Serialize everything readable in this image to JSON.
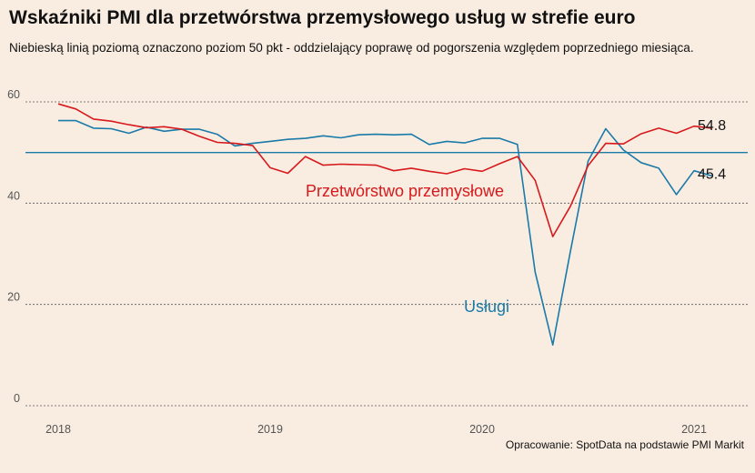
{
  "title": "Wskaźniki PMI dla przetwórstwa przemysłowego usług w strefie euro",
  "subtitle": "Niebieską linią poziomą oznaczono poziom 50 pkt - oddzielający poprawę od pogorszenia względem poprzedniego miesiąca.",
  "source": "Opracowanie: SpotData na podstawie PMI Markit",
  "colors": {
    "background": "#f9ede2",
    "manufacturing": "#d7191c",
    "services": "#1a7aa8",
    "reference_line": "#1a7aa8",
    "grid": "#555555"
  },
  "chart_data": {
    "type": "line",
    "title": "Wskaźniki PMI dla przetwórstwa przemysłowego usług w strefie euro",
    "xlabel": "",
    "ylabel": "",
    "ylim": [
      0,
      62
    ],
    "yticks": [
      0,
      20,
      40,
      60
    ],
    "xticks": [
      "2018",
      "2019",
      "2020",
      "2021"
    ],
    "grid": "horizontal dotted",
    "reference_line": 50,
    "x": [
      "2018-01",
      "2018-02",
      "2018-03",
      "2018-04",
      "2018-05",
      "2018-06",
      "2018-07",
      "2018-08",
      "2018-09",
      "2018-10",
      "2018-11",
      "2018-12",
      "2019-01",
      "2019-02",
      "2019-03",
      "2019-04",
      "2019-05",
      "2019-06",
      "2019-07",
      "2019-08",
      "2019-09",
      "2019-10",
      "2019-11",
      "2019-12",
      "2020-01",
      "2020-02",
      "2020-03",
      "2020-04",
      "2020-05",
      "2020-06",
      "2020-07",
      "2020-08",
      "2020-09",
      "2020-10",
      "2020-11",
      "2020-12",
      "2021-01",
      "2021-02"
    ],
    "series": [
      {
        "name": "Przetwórstwo przemysłowe",
        "end_label": "54.8",
        "values": [
          59.6,
          58.6,
          56.6,
          56.2,
          55.5,
          54.9,
          55.1,
          54.6,
          53.2,
          52.0,
          51.8,
          51.4,
          47.0,
          45.9,
          49.2,
          47.5,
          47.7,
          47.6,
          47.5,
          46.4,
          46.9,
          46.3,
          45.8,
          46.8,
          46.3,
          47.8,
          49.2,
          44.5,
          33.4,
          39.4,
          47.4,
          51.8,
          51.7,
          53.7,
          54.8,
          53.8,
          55.2,
          54.8
        ]
      },
      {
        "name": "Usługi",
        "end_label": "45.4",
        "values": [
          56.3,
          56.3,
          54.8,
          54.7,
          53.8,
          55.0,
          54.2,
          54.6,
          54.6,
          53.6,
          51.3,
          51.8,
          52.2,
          52.6,
          52.8,
          53.3,
          52.9,
          53.5,
          53.6,
          53.5,
          53.6,
          51.6,
          52.2,
          51.9,
          52.8,
          52.8,
          51.6,
          26.4,
          12.0,
          30.5,
          48.3,
          54.7,
          50.5,
          48.0,
          46.9,
          41.7,
          46.4,
          45.4
        ]
      }
    ]
  }
}
